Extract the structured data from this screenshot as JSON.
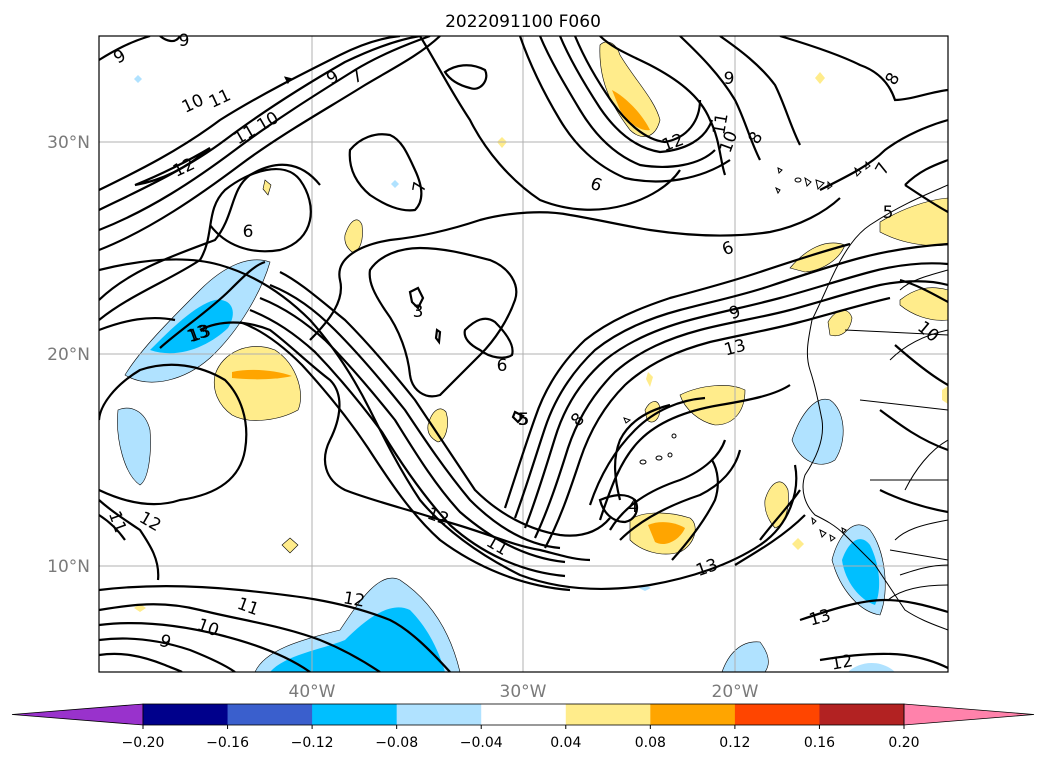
{
  "title": "2022091100 F060",
  "axes": {
    "lat_labels": [
      "30°N",
      "20°N",
      "10°N"
    ],
    "lon_labels": [
      "40°W",
      "30°W",
      "20°W"
    ],
    "gridlines": true
  },
  "colorbar": {
    "tick_labels": [
      "−0.20",
      "−0.16",
      "−0.12",
      "−0.08",
      "−0.04",
      "0.04",
      "0.08",
      "0.12",
      "0.16",
      "0.20"
    ],
    "colors": [
      "#9932cc",
      "#00008b",
      "#3a5fcd",
      "#00bfff",
      "#b0e2ff",
      "#ffffff",
      "#ffec8b",
      "#ffa500",
      "#ff4500",
      "#b22222",
      "#ff82ab"
    ],
    "extend": "both"
  },
  "contour_labels": [
    "9",
    "9",
    "10",
    "11",
    "11",
    "10",
    "9",
    "7",
    "12",
    "7",
    "6",
    "6",
    "9",
    "8",
    "11",
    "10",
    "8",
    "12",
    "13",
    "5",
    "6",
    "3",
    "5",
    "6",
    "13",
    "9",
    "13",
    "10",
    "8",
    "4",
    "12",
    "11",
    "12",
    "11",
    "11",
    "12",
    "10",
    "9",
    "13",
    "13",
    "12",
    "5",
    "7"
  ],
  "colors": {
    "shade_blue_light": "#b0e2ff",
    "shade_blue": "#00bfff",
    "shade_yellow": "#ffec8b",
    "shade_orange": "#ffa500",
    "grid": "#b0b0b0",
    "tick_text": "#7a7a7a"
  }
}
